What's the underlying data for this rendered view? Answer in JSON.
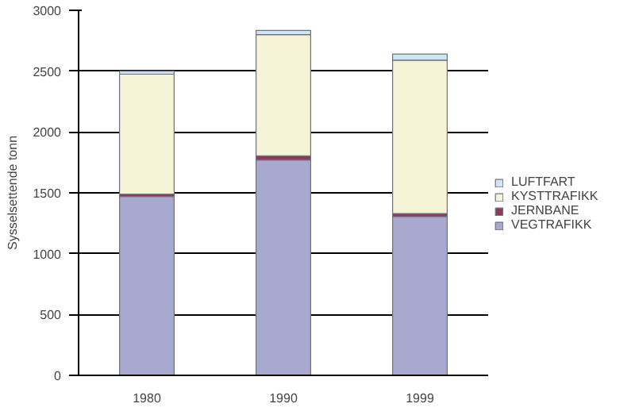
{
  "chart_data": {
    "type": "bar",
    "stacked": true,
    "ylabel": "Sysselsettende tonn",
    "categories": [
      "1980",
      "1990",
      "1999"
    ],
    "series": [
      {
        "name": "VEGTRAFIKK",
        "color": "#a9a9d0",
        "values": [
          1470,
          1770,
          1305
        ]
      },
      {
        "name": "JERNBANE",
        "color": "#8b3a5a",
        "values": [
          20,
          35,
          25
        ]
      },
      {
        "name": "KYSTTRAFIKK",
        "color": "#f5f4d6",
        "values": [
          985,
          995,
          1260
        ]
      },
      {
        "name": "LUFTFART",
        "color": "#cde6f2",
        "values": [
          25,
          35,
          50
        ]
      }
    ],
    "ylim": [
      0,
      3000
    ],
    "yticks": [
      0,
      500,
      1000,
      1500,
      2000,
      2500,
      3000
    ],
    "grid": "y",
    "legend": "right"
  }
}
